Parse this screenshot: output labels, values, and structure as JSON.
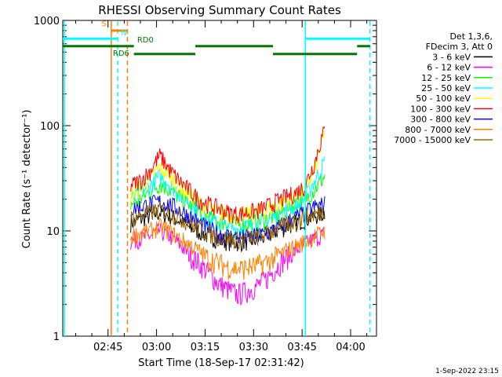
{
  "chart_data": {
    "type": "line",
    "title": "RHESSI Observing Summary Count Rates",
    "xlabel": "Start Time (18-Sep-17 02:31:42)",
    "ylabel": "Count Rate (s⁻¹ detector⁻¹)",
    "yscale": "log",
    "ylim": [
      1,
      1000
    ],
    "xlim": [
      "02:31",
      "04:08"
    ],
    "x_ticks": [
      "02:45",
      "03:00",
      "03:15",
      "03:30",
      "03:45",
      "04:00"
    ],
    "y_ticks": [
      "1",
      "10",
      "100",
      "1000"
    ],
    "legend_header": [
      "Det 1,3,6,",
      "FDecim 3, Att 0"
    ],
    "legend_position": "right",
    "footer_timestamp": "1-Sep-2022 23:15",
    "x": [
      "02:52",
      "02:55",
      "02:58",
      "03:01",
      "03:04",
      "03:07",
      "03:10",
      "03:13",
      "03:16",
      "03:19",
      "03:22",
      "03:25",
      "03:28",
      "03:31",
      "03:34",
      "03:37",
      "03:40",
      "03:43",
      "03:46",
      "03:49",
      "03:52"
    ],
    "series": [
      {
        "name": "3 - 6 keV",
        "color": "#000000",
        "values": [
          12,
          13,
          14,
          15,
          14,
          12.5,
          11,
          10,
          9,
          8.3,
          8,
          7.8,
          8,
          8.3,
          9,
          10,
          11,
          12,
          13,
          14,
          15
        ]
      },
      {
        "name": "6 - 12 keV",
        "color": "#ff00ff",
        "values": [
          8,
          8.5,
          9,
          10,
          9,
          7.5,
          6,
          5,
          4,
          3.2,
          2.8,
          2.5,
          2.7,
          3,
          3.5,
          4.5,
          5.5,
          6.5,
          7.5,
          8.5,
          9.5
        ]
      },
      {
        "name": "12 - 25 keV",
        "color": "#00ff00",
        "values": [
          18,
          20,
          24,
          28,
          25,
          21,
          18,
          15.5,
          13.5,
          12.5,
          12,
          11.5,
          11.8,
          12.3,
          13,
          14,
          16,
          18,
          20,
          25,
          33
        ]
      },
      {
        "name": "25 - 50 keV",
        "color": "#00ffff",
        "values": [
          20,
          23,
          27,
          33,
          28,
          23,
          19,
          16,
          13,
          11.5,
          11,
          10.5,
          11,
          11.5,
          12.5,
          14,
          16,
          18,
          21,
          30,
          45
        ]
      },
      {
        "name": "50 - 100 keV",
        "color": "#ffff00",
        "values": [
          22,
          26,
          32,
          40,
          34,
          27,
          22,
          19,
          16.5,
          15,
          14.5,
          14,
          14.5,
          15,
          16,
          17.5,
          19.5,
          21,
          24,
          38,
          80
        ]
      },
      {
        "name": "100 - 300 keV",
        "color": "#ff0000",
        "values": [
          27,
          30,
          37,
          52,
          38,
          30,
          24.5,
          20,
          18,
          16.5,
          15,
          14.5,
          15,
          15.5,
          17,
          19,
          21,
          23,
          27,
          45,
          90
        ]
      },
      {
        "name": "300 - 800 keV",
        "color": "#0000ff",
        "values": [
          16,
          17,
          18,
          19,
          18,
          16,
          14,
          12,
          10.5,
          9.5,
          9,
          8.7,
          8.7,
          9,
          9.5,
          10.5,
          12,
          13.5,
          15,
          17,
          18
        ]
      },
      {
        "name": "800 - 7000 keV",
        "color": "#ff7f00",
        "values": [
          9,
          9.5,
          10,
          11,
          10,
          8.5,
          7.5,
          6.5,
          5.5,
          5,
          4.6,
          4.4,
          4.5,
          4.7,
          5.1,
          5.7,
          6.5,
          7.2,
          8,
          9,
          10
        ]
      },
      {
        "name": "7000 - 15000 keV",
        "color": "#996600",
        "values": [
          13,
          14,
          15,
          16,
          15,
          13.5,
          12,
          10.5,
          9.5,
          8.8,
          8.5,
          8.3,
          8.5,
          8.8,
          9.5,
          10.5,
          11.5,
          12.5,
          13.5,
          14.5,
          15.5
        ]
      }
    ],
    "annotations": {
      "saa_label": "S",
      "night_label": "N",
      "rd0_label": "RD0",
      "rd6_label": "RD6",
      "saa_bar": {
        "from": "02:46",
        "to": "02:51",
        "level": 800,
        "color": "#ff7f00"
      },
      "night_bars": [
        {
          "from": "02:31",
          "to": "02:48",
          "level": 670
        },
        {
          "from": "03:46",
          "to": "04:06",
          "level": 670
        }
      ],
      "night_color": "#00ffff",
      "rd_bars": [
        {
          "from": "02:31",
          "to": "02:53",
          "level": 570
        },
        {
          "from": "02:53",
          "to": "03:12",
          "level": 480
        },
        {
          "from": "03:12",
          "to": "03:36",
          "level": 570
        },
        {
          "from": "03:36",
          "to": "04:02",
          "level": 480
        },
        {
          "from": "04:02",
          "to": "04:06",
          "level": 570
        }
      ],
      "rd_color": "#007700",
      "vlines": [
        {
          "t": "02:31.5",
          "color": "#00ffff",
          "dash": false
        },
        {
          "t": "02:46",
          "color": "#ff7f00",
          "dash": false
        },
        {
          "t": "02:48",
          "color": "#00ffff",
          "dash": true
        },
        {
          "t": "02:51",
          "color": "#ff7f00",
          "dash": true
        },
        {
          "t": "03:46",
          "color": "#00ffff",
          "dash": false
        },
        {
          "t": "04:06",
          "color": "#00ffff",
          "dash": true
        }
      ]
    }
  }
}
